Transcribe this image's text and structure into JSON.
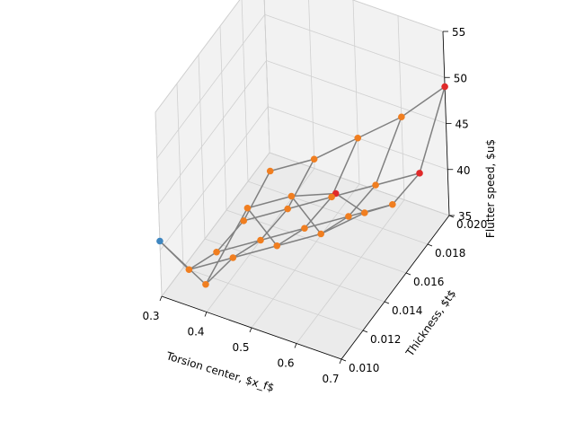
{
  "chart_data": {
    "type": "scatter",
    "subtype": "3d-scatter-with-wireframe",
    "title": "",
    "xlabel": "Torsion center, $x_f$",
    "ylabel": "Thickness, $t$",
    "zlabel": "Flutter speed, $u$",
    "xlim": [
      0.3,
      0.7
    ],
    "ylim": [
      0.01,
      0.02
    ],
    "zlim": [
      35,
      55
    ],
    "x_ticks": [
      0.3,
      0.4,
      0.5,
      0.6,
      0.7
    ],
    "y_ticks": [
      0.01,
      0.012,
      0.014,
      0.016,
      0.018,
      0.02
    ],
    "z_ticks": [
      35,
      40,
      45,
      50,
      55
    ],
    "x_tick_labels": [
      "0.3",
      "0.4",
      "0.5",
      "0.6",
      "0.7"
    ],
    "y_tick_labels": [
      "0.010",
      "0.012",
      "0.014",
      "0.016",
      "0.018",
      "0.020"
    ],
    "z_tick_labels": [
      "35",
      "40",
      "45",
      "50",
      "55"
    ],
    "x": [
      0.3,
      0.4,
      0.5,
      0.6,
      0.7
    ],
    "y": [
      0.01,
      0.0125,
      0.015,
      0.0175,
      0.02
    ],
    "z_grid": [
      [
        41,
        38,
        48,
        51,
        53
      ],
      [
        34,
        37,
        40,
        43,
        47
      ],
      [
        32,
        35,
        38,
        41,
        44
      ],
      [
        31.5,
        34.5,
        37.5,
        40.5,
        43.5
      ],
      [
        33,
        36,
        40,
        44,
        49
      ]
    ],
    "point_colors": [
      [
        "#3e86c0",
        "#f07e20",
        "#f07e20",
        "#f07e20",
        "#e02a2a"
      ],
      [
        "#f07e20",
        "#f07e20",
        "#f07e20",
        "#f07e20",
        "#f07e20"
      ],
      [
        "#f07e20",
        "#f07e20",
        "#f07e20",
        "#f07e20",
        "#f07e20"
      ],
      [
        "#f07e20",
        "#f07e20",
        "#f07e20",
        "#f07e20",
        "#e02a2a"
      ],
      [
        "#f07e20",
        "#f07e20",
        "#f07e20",
        "#f07e20",
        "#e02a2a"
      ]
    ],
    "colors": {
      "low_speed": "#3e86c0",
      "mid_speed": "#f07e20",
      "high_speed": "#e02a2a",
      "wireframe": "#808080"
    },
    "grid": true
  }
}
